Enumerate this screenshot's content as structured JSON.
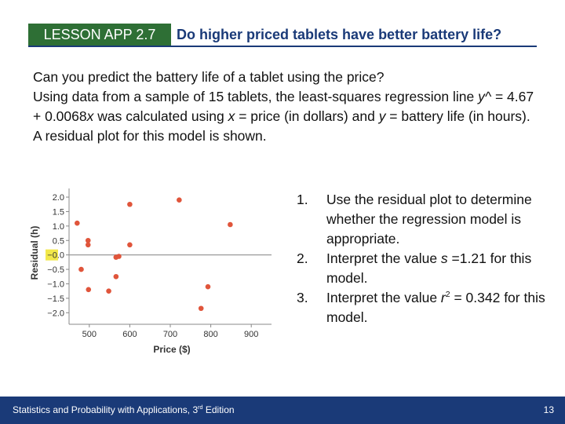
{
  "header": {
    "lesson": "LESSON APP 2.7",
    "title": "Do higher priced tablets have better battery life?"
  },
  "intro": {
    "question": "Can you predict the battery life of a tablet using the price?",
    "sentence_1": "Using data from a sample of 15 tablets, the least-squares regression line ",
    "yhat": "y^",
    "equation": " = 4.67 + 0.0068",
    "x_var": "x",
    "mid": " was calculated using ",
    "x_def": "x",
    "x_def_text": " = price (in dollars) and ",
    "y_def": "y",
    "end": " = battery life (in hours).  A residual plot for this model is shown."
  },
  "questions": [
    {
      "num": "1.",
      "text": "Use the residual plot to determine whether the regression model is appropriate."
    },
    {
      "num": "2.",
      "pre": "Interpret the value ",
      "var": "s",
      "post": " =1.21 for this model."
    },
    {
      "num": "3.",
      "pre": "Interpret the value ",
      "var": "r",
      "sup": "2",
      "post": " = 0.342 for this model."
    }
  ],
  "footer": {
    "book_pre": "Statistics and Probability with Applications, 3",
    "book_sup": "rd",
    "book_post": " Edition",
    "page": "13"
  },
  "colors": {
    "badge": "#2e6f35",
    "title": "#1a3a78",
    "footer": "#1a3a78",
    "point": "#e0553b",
    "highlight": "#f2e84a"
  },
  "chart_data": {
    "type": "scatter",
    "xlabel": "Price ($)",
    "ylabel": "Residual (h)",
    "xlim": [
      450,
      950
    ],
    "ylim": [
      -2.4,
      2.3
    ],
    "xticks": [
      500,
      600,
      700,
      800,
      900
    ],
    "xtick_labels": [
      "500",
      "600",
      "700",
      "800",
      "900"
    ],
    "yticks": [
      2.0,
      1.5,
      1.0,
      0.5,
      0.0,
      -0.5,
      -1.0,
      -1.5,
      -2.0
    ],
    "ytick_labels": [
      "2.0",
      "1.5",
      "1.0",
      "0.5",
      "−0.0",
      "−0.5",
      "−1.0",
      "−1.5",
      "−2.0"
    ],
    "reference_line": 0,
    "highlighted_tick": "−0.0",
    "points": [
      {
        "x": 470,
        "y": 1.1
      },
      {
        "x": 497,
        "y": 0.5
      },
      {
        "x": 497,
        "y": 0.35
      },
      {
        "x": 480,
        "y": -0.5
      },
      {
        "x": 498,
        "y": -1.2
      },
      {
        "x": 548,
        "y": -1.25
      },
      {
        "x": 566,
        "y": -0.08
      },
      {
        "x": 573,
        "y": -0.05
      },
      {
        "x": 566,
        "y": -0.75
      },
      {
        "x": 600,
        "y": 1.75
      },
      {
        "x": 600,
        "y": 0.35
      },
      {
        "x": 722,
        "y": 1.9
      },
      {
        "x": 776,
        "y": -1.85
      },
      {
        "x": 793,
        "y": -1.1
      },
      {
        "x": 848,
        "y": 1.05
      }
    ]
  }
}
